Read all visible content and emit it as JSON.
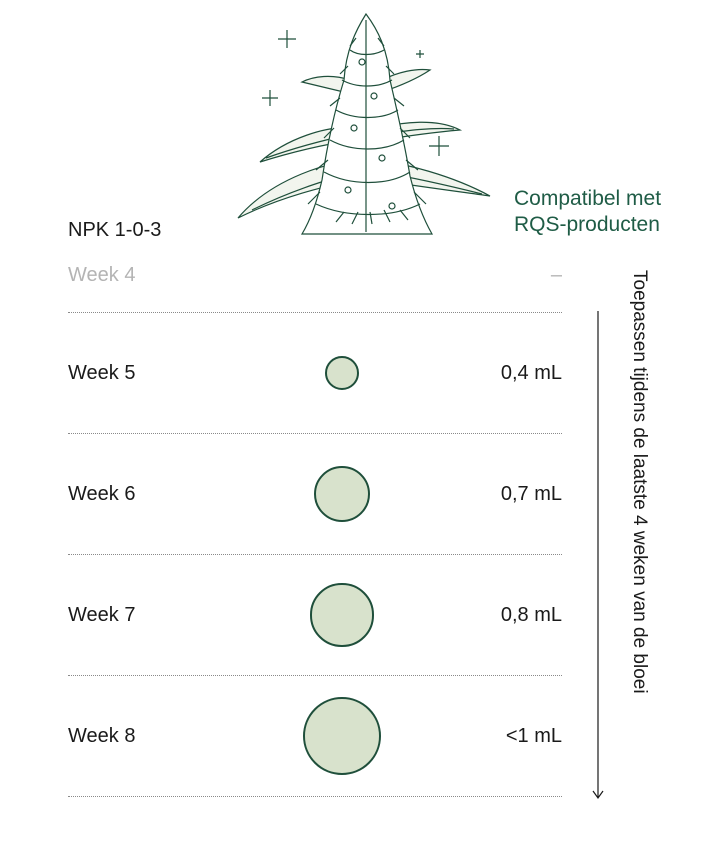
{
  "header": {
    "compat_line1": "Compatibel met",
    "compat_line2": "RQS-producten",
    "npk": "NPK 1-0-3"
  },
  "schedule": {
    "inactive": {
      "week": "Week 4",
      "dose": "–"
    },
    "rows": [
      {
        "week": "Week 5",
        "dose": "0,4 mL",
        "amount_ml": 0.4
      },
      {
        "week": "Week 6",
        "dose": "0,7 mL",
        "amount_ml": 0.7
      },
      {
        "week": "Week 7",
        "dose": "0,8 mL",
        "amount_ml": 0.8
      },
      {
        "week": "Week 8",
        "dose": "<1 mL",
        "amount_ml": 1.0
      }
    ]
  },
  "side_label": "Toepassen tijdens de laatste 4 weken van de bloei",
  "colors": {
    "accent": "#1f5c46",
    "dot_fill": "#d8e2cc",
    "dot_stroke": "#1f4f3b",
    "muted": "#b4b4b4"
  },
  "icons": {
    "illustration": "cannabis-plant-illustration",
    "sparkle": "sparkle-icon",
    "arrow": "arrow-down-icon"
  }
}
